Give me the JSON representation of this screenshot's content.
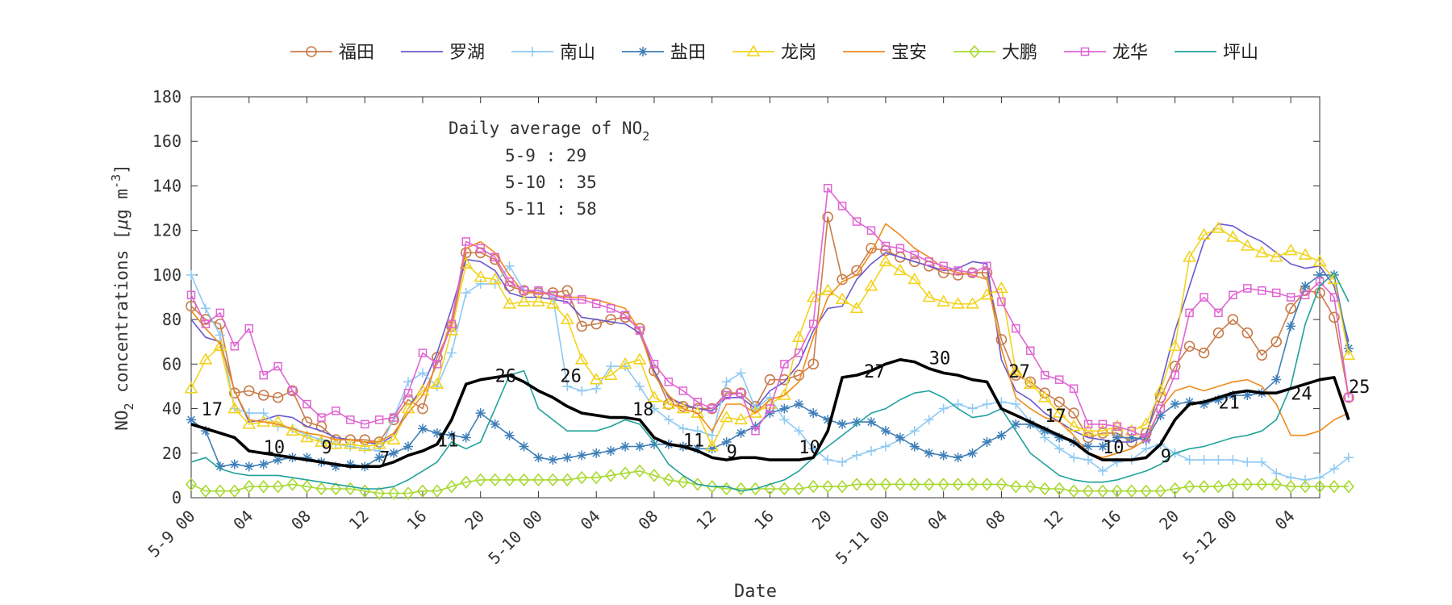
{
  "chart_data": {
    "type": "line",
    "title": "",
    "xlabel": "Date",
    "ylabel_parts": [
      "NO",
      "2",
      " concentrations [",
      "μ",
      "g m",
      "-3",
      "]"
    ],
    "ylim": [
      0,
      180
    ],
    "yticks": [
      0,
      20,
      40,
      60,
      80,
      100,
      120,
      140,
      160,
      180
    ],
    "x_start": "5-9 00",
    "x_end_hours": 78,
    "x_ticks": [
      {
        "h": 0,
        "label": "5-9 00"
      },
      {
        "h": 4,
        "label": "04"
      },
      {
        "h": 8,
        "label": "08"
      },
      {
        "h": 12,
        "label": "12"
      },
      {
        "h": 16,
        "label": "16"
      },
      {
        "h": 20,
        "label": "20"
      },
      {
        "h": 24,
        "label": "5-10 00"
      },
      {
        "h": 28,
        "label": "04"
      },
      {
        "h": 32,
        "label": "08"
      },
      {
        "h": 36,
        "label": "12"
      },
      {
        "h": 40,
        "label": "16"
      },
      {
        "h": 44,
        "label": "20"
      },
      {
        "h": 48,
        "label": "5-11 00"
      },
      {
        "h": 52,
        "label": "04"
      },
      {
        "h": 56,
        "label": "08"
      },
      {
        "h": 60,
        "label": "12"
      },
      {
        "h": 64,
        "label": "16"
      },
      {
        "h": 68,
        "label": "20"
      },
      {
        "h": 72,
        "label": "5-12 00"
      },
      {
        "h": 76,
        "label": "04"
      }
    ],
    "grid": false,
    "legend_position": "top",
    "annotation": {
      "title_parts": [
        "Daily average of NO",
        "2"
      ],
      "lines": [
        "5-9 : 29",
        "5-10 : 35",
        "5-11 : 58"
      ]
    },
    "series": [
      {
        "name": "福田",
        "color": "#c97c4a",
        "marker": "circle",
        "marker_every": 1,
        "values": [
          86,
          80,
          78,
          47,
          48,
          46,
          45,
          48,
          34,
          32,
          26,
          26,
          26,
          25,
          35,
          44,
          40,
          63,
          77,
          110,
          110,
          107,
          95,
          93,
          92,
          92,
          93,
          77,
          78,
          80,
          81,
          76,
          57,
          42,
          41,
          40,
          40,
          47,
          47,
          41,
          53,
          53,
          55,
          60,
          126,
          98,
          102,
          112,
          111,
          108,
          106,
          104,
          101,
          100,
          101,
          101,
          71,
          55,
          52,
          47,
          43,
          38,
          27,
          29,
          29,
          25,
          29,
          45,
          59,
          68,
          65,
          74,
          80,
          74,
          64,
          70,
          85,
          93,
          92,
          81,
          45
        ]
      },
      {
        "name": "罗湖",
        "color": "#6a5acd",
        "marker": "none",
        "values": [
          80,
          72,
          70,
          48,
          34,
          35,
          37,
          36,
          32,
          30,
          27,
          26,
          25,
          24,
          28,
          40,
          50,
          65,
          85,
          107,
          106,
          102,
          92,
          90,
          90,
          89,
          88,
          81,
          80,
          79,
          78,
          74,
          57,
          45,
          42,
          40,
          39,
          45,
          45,
          40,
          48,
          52,
          60,
          75,
          85,
          86,
          98,
          105,
          110,
          108,
          106,
          104,
          102,
          103,
          106,
          105,
          62,
          48,
          44,
          38,
          34,
          30,
          27,
          26,
          25,
          25,
          28,
          50,
          75,
          95,
          115,
          123,
          122,
          118,
          115,
          110,
          105,
          103,
          104,
          95,
          70
        ]
      },
      {
        "name": "南山",
        "color": "#8ec9f2",
        "marker": "plus",
        "marker_every": 1,
        "values": [
          100,
          85,
          73,
          40,
          38,
          38,
          32,
          31,
          28,
          26,
          24,
          23,
          22,
          21,
          36,
          52,
          56,
          50,
          65,
          92,
          96,
          96,
          104,
          93,
          93,
          90,
          50,
          48,
          49,
          59,
          59,
          50,
          40,
          35,
          31,
          30,
          28,
          52,
          56,
          40,
          45,
          35,
          30,
          22,
          17,
          16,
          19,
          21,
          23,
          26,
          30,
          35,
          40,
          42,
          40,
          42,
          43,
          42,
          34,
          27,
          22,
          18,
          17,
          12,
          16,
          17,
          22,
          24,
          20,
          17,
          17,
          17,
          17,
          16,
          16,
          11,
          9,
          8,
          9,
          13,
          18
        ]
      },
      {
        "name": "盐田",
        "color": "#3f7fb8",
        "marker": "asterisk",
        "marker_every": 1,
        "values": [
          35,
          30,
          14,
          15,
          14,
          15,
          17,
          18,
          18,
          16,
          14,
          15,
          14,
          18,
          20,
          23,
          31,
          29,
          28,
          27,
          38,
          33,
          28,
          23,
          18,
          17,
          18,
          19,
          20,
          21,
          23,
          23,
          24,
          24,
          23,
          22,
          22,
          25,
          29,
          32,
          38,
          40,
          42,
          38,
          35,
          33,
          34,
          34,
          30,
          27,
          23,
          20,
          19,
          18,
          20,
          25,
          28,
          33,
          33,
          30,
          27,
          25,
          23,
          23,
          27,
          27,
          26,
          37,
          42,
          43,
          42,
          44,
          46,
          46,
          47,
          53,
          77,
          95,
          100,
          100,
          67
        ]
      },
      {
        "name": "龙岗",
        "color": "#f2d31f",
        "marker": "triangle",
        "marker_every": 1,
        "values": [
          49,
          62,
          68,
          40,
          33,
          34,
          34,
          30,
          27,
          25,
          24,
          24,
          23,
          24,
          26,
          40,
          48,
          51,
          75,
          105,
          99,
          98,
          87,
          88,
          88,
          87,
          80,
          62,
          53,
          55,
          60,
          62,
          45,
          42,
          40,
          38,
          23,
          36,
          35,
          38,
          42,
          46,
          72,
          90,
          93,
          89,
          85,
          95,
          106,
          102,
          98,
          90,
          88,
          87,
          87,
          91,
          94,
          57,
          51,
          45,
          38,
          32,
          30,
          30,
          32,
          30,
          33,
          48,
          68,
          108,
          118,
          121,
          117,
          113,
          110,
          108,
          111,
          109,
          106,
          98,
          64
        ]
      },
      {
        "name": "宝安",
        "color": "#f08a1c",
        "marker": "none",
        "values": [
          84,
          76,
          69,
          48,
          35,
          34,
          33,
          31,
          29,
          28,
          26,
          26,
          25,
          25,
          29,
          38,
          46,
          60,
          80,
          112,
          115,
          110,
          100,
          92,
          92,
          91,
          90,
          90,
          89,
          87,
          85,
          75,
          55,
          46,
          40,
          38,
          30,
          42,
          42,
          38,
          44,
          46,
          52,
          72,
          90,
          97,
          100,
          110,
          123,
          118,
          112,
          108,
          103,
          101,
          100,
          98,
          67,
          45,
          40,
          36,
          34,
          28,
          20,
          18,
          20,
          22,
          26,
          40,
          48,
          50,
          48,
          50,
          52,
          53,
          50,
          42,
          28,
          28,
          30,
          35,
          38
        ]
      },
      {
        "name": "大鹏",
        "color": "#a8d932",
        "marker": "diamond",
        "marker_every": 1,
        "values": [
          6,
          3,
          3,
          3,
          5,
          5,
          5,
          6,
          5,
          4,
          4,
          4,
          3,
          2,
          2,
          2,
          3,
          3,
          5,
          7,
          8,
          8,
          8,
          8,
          8,
          8,
          8,
          9,
          9,
          10,
          11,
          12,
          10,
          8,
          7,
          6,
          5,
          4,
          4,
          4,
          4,
          4,
          4,
          5,
          5,
          5,
          6,
          6,
          6,
          6,
          6,
          6,
          6,
          6,
          6,
          6,
          6,
          5,
          5,
          4,
          4,
          3,
          3,
          3,
          3,
          3,
          3,
          3,
          4,
          5,
          5,
          5,
          6,
          6,
          6,
          6,
          5,
          5,
          5,
          5,
          5
        ]
      },
      {
        "name": "龙华",
        "color": "#e065d3",
        "marker": "square",
        "marker_every": 1,
        "values": [
          91,
          78,
          83,
          68,
          76,
          55,
          59,
          48,
          42,
          36,
          39,
          35,
          33,
          35,
          36,
          47,
          65,
          60,
          78,
          115,
          112,
          108,
          97,
          93,
          93,
          91,
          89,
          89,
          87,
          85,
          82,
          75,
          60,
          52,
          48,
          43,
          40,
          46,
          47,
          30,
          40,
          60,
          65,
          78,
          139,
          131,
          124,
          120,
          113,
          112,
          109,
          106,
          104,
          102,
          101,
          104,
          88,
          76,
          66,
          55,
          53,
          49,
          33,
          33,
          32,
          30,
          27,
          40,
          55,
          83,
          90,
          83,
          91,
          94,
          93,
          92,
          90,
          91,
          97,
          90,
          45
        ]
      },
      {
        "name": "坪山",
        "color": "#20a29a",
        "marker": "none",
        "values": [
          16,
          18,
          13,
          11,
          10,
          10,
          10,
          9,
          8,
          7,
          6,
          5,
          4,
          4,
          5,
          8,
          12,
          16,
          25,
          22,
          25,
          40,
          55,
          57,
          40,
          35,
          30,
          30,
          30,
          32,
          35,
          33,
          25,
          15,
          10,
          6,
          5,
          5,
          3,
          4,
          6,
          8,
          12,
          18,
          23,
          28,
          33,
          38,
          40,
          44,
          47,
          48,
          45,
          40,
          36,
          37,
          40,
          30,
          20,
          15,
          10,
          8,
          7,
          7,
          8,
          10,
          12,
          15,
          20,
          22,
          23,
          25,
          27,
          28,
          30,
          35,
          50,
          78,
          95,
          101,
          88
        ]
      },
      {
        "name": "",
        "color": "#000000",
        "marker": "none",
        "bold": true,
        "values": [
          33,
          31,
          29,
          27,
          21,
          20,
          19,
          18,
          17,
          16,
          15,
          14,
          14,
          14,
          16,
          19,
          21,
          24,
          35,
          51,
          53,
          54,
          55,
          52,
          48,
          45,
          41,
          38,
          37,
          36,
          36,
          35,
          27,
          24,
          23,
          21,
          18,
          17,
          18,
          18,
          17,
          17,
          17,
          18,
          30,
          54,
          55,
          57,
          60,
          62,
          61,
          58,
          56,
          55,
          53,
          52,
          40,
          37,
          34,
          31,
          28,
          25,
          20,
          17,
          17,
          17,
          18,
          24,
          35,
          42,
          43,
          45,
          47,
          48,
          47,
          47,
          49,
          51,
          53,
          54,
          35
        ]
      }
    ],
    "data_labels": [
      {
        "h": 0.7,
        "y": 37,
        "text": "17"
      },
      {
        "h": 5,
        "y": 20,
        "text": "10"
      },
      {
        "h": 9,
        "y": 20,
        "text": "9"
      },
      {
        "h": 13,
        "y": 15,
        "text": "7"
      },
      {
        "h": 17,
        "y": 23,
        "text": "11"
      },
      {
        "h": 21,
        "y": 52,
        "text": "26"
      },
      {
        "h": 25.5,
        "y": 52,
        "text": "26"
      },
      {
        "h": 30.5,
        "y": 37,
        "text": "18"
      },
      {
        "h": 34,
        "y": 23,
        "text": "11"
      },
      {
        "h": 37,
        "y": 18,
        "text": "9"
      },
      {
        "h": 42,
        "y": 20,
        "text": "10"
      },
      {
        "h": 46.5,
        "y": 54,
        "text": "27"
      },
      {
        "h": 51,
        "y": 60,
        "text": "30"
      },
      {
        "h": 56.5,
        "y": 54,
        "text": "27"
      },
      {
        "h": 59,
        "y": 34,
        "text": "17"
      },
      {
        "h": 63,
        "y": 20,
        "text": "10"
      },
      {
        "h": 67,
        "y": 16,
        "text": "9"
      },
      {
        "h": 71,
        "y": 40,
        "text": "21"
      },
      {
        "h": 76,
        "y": 44,
        "text": "24"
      },
      {
        "h": 80,
        "y": 47,
        "text": "25"
      }
    ]
  }
}
